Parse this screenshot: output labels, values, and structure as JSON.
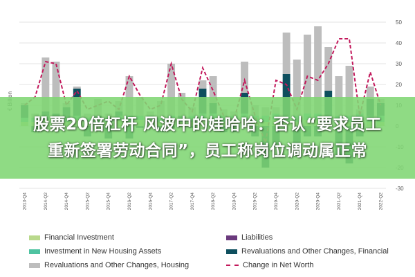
{
  "chart_data": {
    "type": "bar",
    "ylabel": "€ Billion",
    "ylim": [
      -30,
      50
    ],
    "yticks": [
      -30,
      -20,
      -10,
      0,
      10,
      20,
      30,
      40,
      50
    ],
    "grid": true,
    "legend_position": "bottom",
    "categories": [
      "2013-Q4",
      "2014-Q1",
      "2014-Q2",
      "2014-Q3",
      "2014-Q4",
      "2015-Q1",
      "2015-Q2",
      "2015-Q3",
      "2015-Q4",
      "2016-Q1",
      "2016-Q2",
      "2016-Q3",
      "2016-Q4",
      "2017-Q1",
      "2017-Q2",
      "2017-Q3",
      "2017-Q4",
      "2018-Q1",
      "2018-Q2",
      "2018-Q3",
      "2018-Q4",
      "2019-Q1",
      "2019-Q2",
      "2019-Q3",
      "2019-Q4",
      "2020-Q1",
      "2020-Q2",
      "2020-Q3",
      "2020-Q4",
      "2021-Q1",
      "2021-Q2",
      "2021-Q3",
      "2021-Q4",
      "2022-Q1",
      "2022-Q2"
    ],
    "x_tick_labels": [
      "2013-Q4",
      "2014-Q2",
      "2014-Q4",
      "2015-Q2",
      "2015-Q4",
      "2016-Q2",
      "2016-Q4",
      "2017-Q2",
      "2017-Q4",
      "2018-Q2",
      "2018-Q4",
      "2019-Q2",
      "2019-Q4",
      "2020-Q2",
      "2020-Q4",
      "2021-Q2",
      "2021-Q4",
      "2022-Q2"
    ],
    "series": [
      {
        "name": "Financial Investment",
        "kind": "bar",
        "color": "#b9d98c",
        "values": [
          2,
          2,
          3,
          2,
          2,
          3,
          2,
          2,
          2,
          3,
          2,
          3,
          3,
          2,
          3,
          2,
          2,
          3,
          3,
          2,
          2,
          3,
          2,
          2,
          3,
          2,
          2,
          3,
          3,
          2,
          2,
          2,
          3,
          2,
          2
        ]
      },
      {
        "name": "Liabilities",
        "kind": "bar",
        "color": "#6b3a7d",
        "values": [
          0,
          0,
          0,
          0,
          0,
          -1,
          0,
          0,
          0,
          0,
          0,
          0,
          0,
          0,
          0,
          0,
          0,
          0,
          -1,
          0,
          0,
          0,
          0,
          0,
          0,
          0,
          0,
          0,
          0,
          0,
          0,
          0,
          0,
          0,
          0
        ]
      },
      {
        "name": "Investment in New Housing Assets",
        "kind": "bar",
        "color": "#4fc3a1",
        "values": [
          2,
          2,
          2,
          2,
          2,
          2,
          2,
          2,
          2,
          2,
          3,
          2,
          2,
          2,
          2,
          2,
          3,
          3,
          3,
          3,
          3,
          3,
          3,
          3,
          3,
          3,
          3,
          3,
          3,
          3,
          3,
          3,
          3,
          3,
          3
        ]
      },
      {
        "name": "Revaluations and Other Changes, Financial",
        "kind": "bar",
        "color": "#0e4f5e",
        "values": [
          6,
          -3,
          2,
          2,
          5,
          13,
          -5,
          1,
          -6,
          2,
          -6,
          -1,
          0,
          -3,
          -1,
          1,
          -1,
          12,
          5,
          -3,
          -3,
          10,
          -5,
          -20,
          -10,
          20,
          -10,
          -5,
          -5,
          12,
          -15,
          -18,
          -5,
          8,
          6
        ]
      },
      {
        "name": "Revaluations and Other Changes, Housing",
        "kind": "bar",
        "color": "#bdbdbd",
        "values": [
          1,
          2,
          26,
          25,
          2,
          1,
          2,
          8,
          2,
          5,
          19,
          9,
          2,
          8,
          25,
          11,
          4,
          4,
          13,
          3,
          2,
          15,
          5,
          4,
          3,
          20,
          27,
          38,
          42,
          21,
          19,
          24,
          2,
          6,
          2
        ]
      },
      {
        "name": "Change in Net Worth",
        "kind": "line",
        "color": "#c2185b",
        "values": [
          10,
          14,
          31,
          30,
          10,
          17,
          8,
          10,
          12,
          8,
          24,
          15,
          8,
          10,
          30,
          13,
          7,
          28,
          17,
          5,
          3,
          22,
          5,
          -8,
          22,
          20,
          8,
          24,
          22,
          30,
          42,
          42,
          5,
          26,
          10
        ]
      }
    ]
  },
  "overlay": {
    "line1": "股票20倍杠杆 风波中的娃哈哈：否认“要求员工",
    "line2": "重新签署劳动合同”，员工称岗位调动属正常"
  }
}
